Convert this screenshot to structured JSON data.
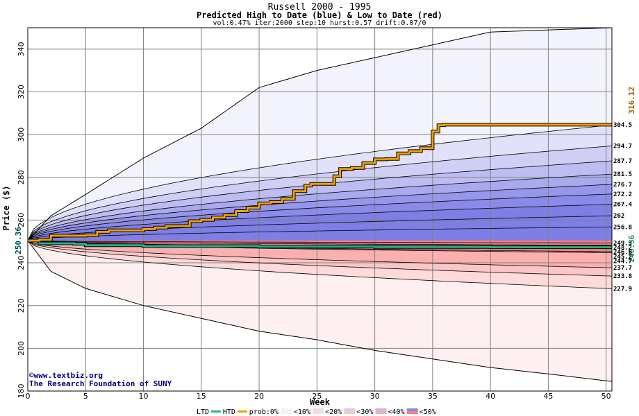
{
  "chart_data": {
    "type": "area",
    "title": "Russell 2000 - 1995",
    "subtitle": "Predicted High to Date (blue) &  Low to Date (red)",
    "params": "vol:0.47% iter:2000 step:10 hurst:0.57 drift:0.07/0",
    "xlabel": "Week",
    "ylabel": "Price ($)",
    "xlim": [
      0,
      50.5
    ],
    "ylim": [
      180,
      350
    ],
    "xticks": [
      0,
      5,
      10,
      15,
      20,
      25,
      30,
      35,
      40,
      45,
      50
    ],
    "yticks": [
      180,
      200,
      220,
      240,
      260,
      280,
      300,
      320,
      340
    ],
    "grid": true,
    "start_value": "250.36",
    "high_end_label": "316.12",
    "low_end_label": "246.56",
    "high_band_labels": [
      "304.5",
      "294.7",
      "287.7",
      "281.5",
      "276.7",
      "272.2",
      "267.4",
      "262",
      "256.8",
      "249.3"
    ],
    "low_band_labels": [
      "248.2",
      "246.6",
      "245.2",
      "244.7",
      "237.7",
      "233.8",
      "227.9"
    ],
    "high_band_end_values": [
      304.5,
      294.7,
      287.7,
      281.5,
      276.7,
      272.2,
      267.4,
      262,
      256.8,
      249.3
    ],
    "low_band_end_values": [
      248.2,
      246.6,
      245.2,
      244.7,
      237.7,
      233.8,
      227.9
    ],
    "outer_high_envelope": [
      [
        0,
        250.4
      ],
      [
        2,
        262
      ],
      [
        5,
        272
      ],
      [
        10,
        289
      ],
      [
        15,
        303
      ],
      [
        20,
        322
      ],
      [
        25,
        330
      ],
      [
        30,
        336
      ],
      [
        35,
        342
      ],
      [
        40,
        348
      ],
      [
        50.5,
        350
      ]
    ],
    "outer_low_envelope": [
      [
        0,
        250.4
      ],
      [
        2,
        236
      ],
      [
        5,
        228
      ],
      [
        10,
        220
      ],
      [
        15,
        214
      ],
      [
        20,
        208
      ],
      [
        25,
        204
      ],
      [
        30,
        199
      ],
      [
        35,
        195
      ],
      [
        40,
        191
      ],
      [
        45,
        188
      ],
      [
        50.5,
        184.5
      ]
    ],
    "htd_series": [
      [
        0,
        250.4
      ],
      [
        1,
        250.8
      ],
      [
        2,
        252.7
      ],
      [
        5,
        252.9
      ],
      [
        6,
        254.5
      ],
      [
        7,
        255.2
      ],
      [
        10,
        255.8
      ],
      [
        11,
        256.5
      ],
      [
        12,
        257.2
      ],
      [
        14,
        259.5
      ],
      [
        15,
        260.1
      ],
      [
        16,
        261.2
      ],
      [
        17,
        262.3
      ],
      [
        18,
        264.2
      ],
      [
        19,
        265.8
      ],
      [
        20,
        267.8
      ],
      [
        21,
        268.4
      ],
      [
        22,
        269.9
      ],
      [
        23,
        273.5
      ],
      [
        24,
        276.1
      ],
      [
        24.5,
        276.9
      ],
      [
        26,
        276.9
      ],
      [
        26.5,
        280.5
      ],
      [
        27,
        283.9
      ],
      [
        28,
        284.4
      ],
      [
        29,
        286.7
      ],
      [
        30,
        288.4
      ],
      [
        31,
        288.6
      ],
      [
        32,
        291.2
      ],
      [
        33,
        292.3
      ],
      [
        34,
        293.6
      ],
      [
        35,
        301.4
      ],
      [
        35.5,
        304.4
      ],
      [
        36,
        304.6
      ],
      [
        50.5,
        304.6
      ]
    ],
    "ltd_series": [
      [
        0,
        250.4
      ],
      [
        1,
        249.1
      ],
      [
        4,
        248.9
      ],
      [
        5,
        248.2
      ],
      [
        10,
        247.8
      ],
      [
        20,
        247.6
      ],
      [
        30,
        247.4
      ],
      [
        40,
        247.3
      ],
      [
        50.5,
        247.3
      ]
    ],
    "legend": [
      "LTD",
      "HTD",
      "prob:0%",
      "<10%",
      "<20%",
      "<30%",
      "<40%",
      "<50%"
    ],
    "colors": {
      "htd": "#f0a000",
      "ltd": "#1ab58a",
      "axis": "#000000",
      "grid": "#808080",
      "blue_bands": [
        "#f3f3fd",
        "#e1e1fa",
        "#cfcff6",
        "#bdbdf1",
        "#a9a9ed",
        "#9696ea",
        "#8a8ae8",
        "#7e7ee6"
      ],
      "red_bands": [
        "#fef0f0",
        "#fedada",
        "#fdc6c6",
        "#fbb0b0",
        "#f99999",
        "#f78080"
      ]
    }
  },
  "credits": {
    "line1": "©www.textbiz.org",
    "line2": "The Research Foundation of SUNY"
  }
}
